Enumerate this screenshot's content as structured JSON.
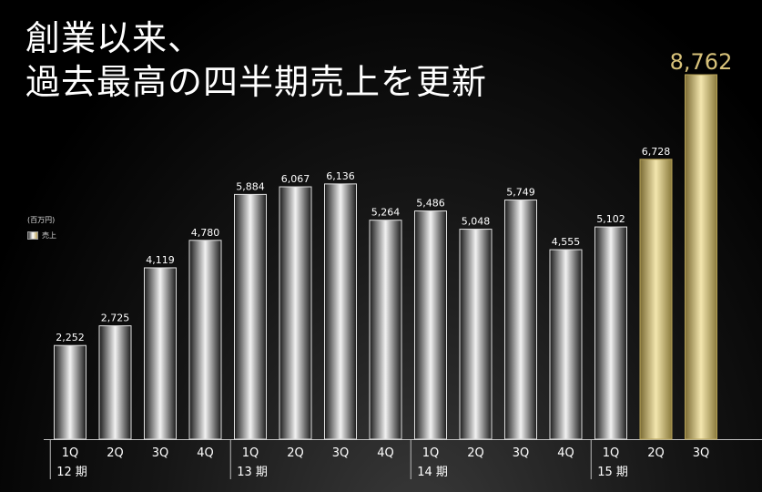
{
  "title": {
    "line1": "創業以来、",
    "line2": "過去最高の四半期売上を更新"
  },
  "legend": {
    "unit": "(百万円)",
    "series_name": "売上"
  },
  "colors": {
    "silver_bar": "#cfcfcf",
    "gold_bar": "#c9b46a",
    "highlight_text": "#d8c27a"
  },
  "chart_data": {
    "type": "bar",
    "ylabel": "百万円",
    "ylim": [
      0,
      9000
    ],
    "groups": [
      {
        "label": "12 期",
        "quarters": [
          "1Q",
          "2Q",
          "3Q",
          "4Q"
        ]
      },
      {
        "label": "13 期",
        "quarters": [
          "1Q",
          "2Q",
          "3Q",
          "4Q"
        ]
      },
      {
        "label": "14 期",
        "quarters": [
          "1Q",
          "2Q",
          "3Q",
          "4Q"
        ]
      },
      {
        "label": "15 期",
        "quarters": [
          "1Q",
          "2Q",
          "3Q"
        ]
      }
    ],
    "categories": [
      "12期1Q",
      "12期2Q",
      "12期3Q",
      "12期4Q",
      "13期1Q",
      "13期2Q",
      "13期3Q",
      "13期4Q",
      "14期1Q",
      "14期2Q",
      "14期3Q",
      "14期4Q",
      "15期1Q",
      "15期2Q",
      "15期3Q"
    ],
    "series": [
      {
        "name": "売上",
        "values": [
          2252,
          2725,
          4119,
          4780,
          5884,
          6067,
          6136,
          5264,
          5486,
          5048,
          5749,
          4555,
          5102,
          6728,
          8762
        ]
      }
    ],
    "labels": [
      "2,252",
      "2,725",
      "4,119",
      "4,780",
      "5,884",
      "6,067",
      "6,136",
      "5,264",
      "5,486",
      "5,048",
      "5,749",
      "4,555",
      "5,102",
      "6,728",
      "8,762"
    ],
    "highlighted": [
      false,
      false,
      false,
      false,
      false,
      false,
      false,
      false,
      false,
      false,
      false,
      false,
      false,
      true,
      true
    ]
  }
}
